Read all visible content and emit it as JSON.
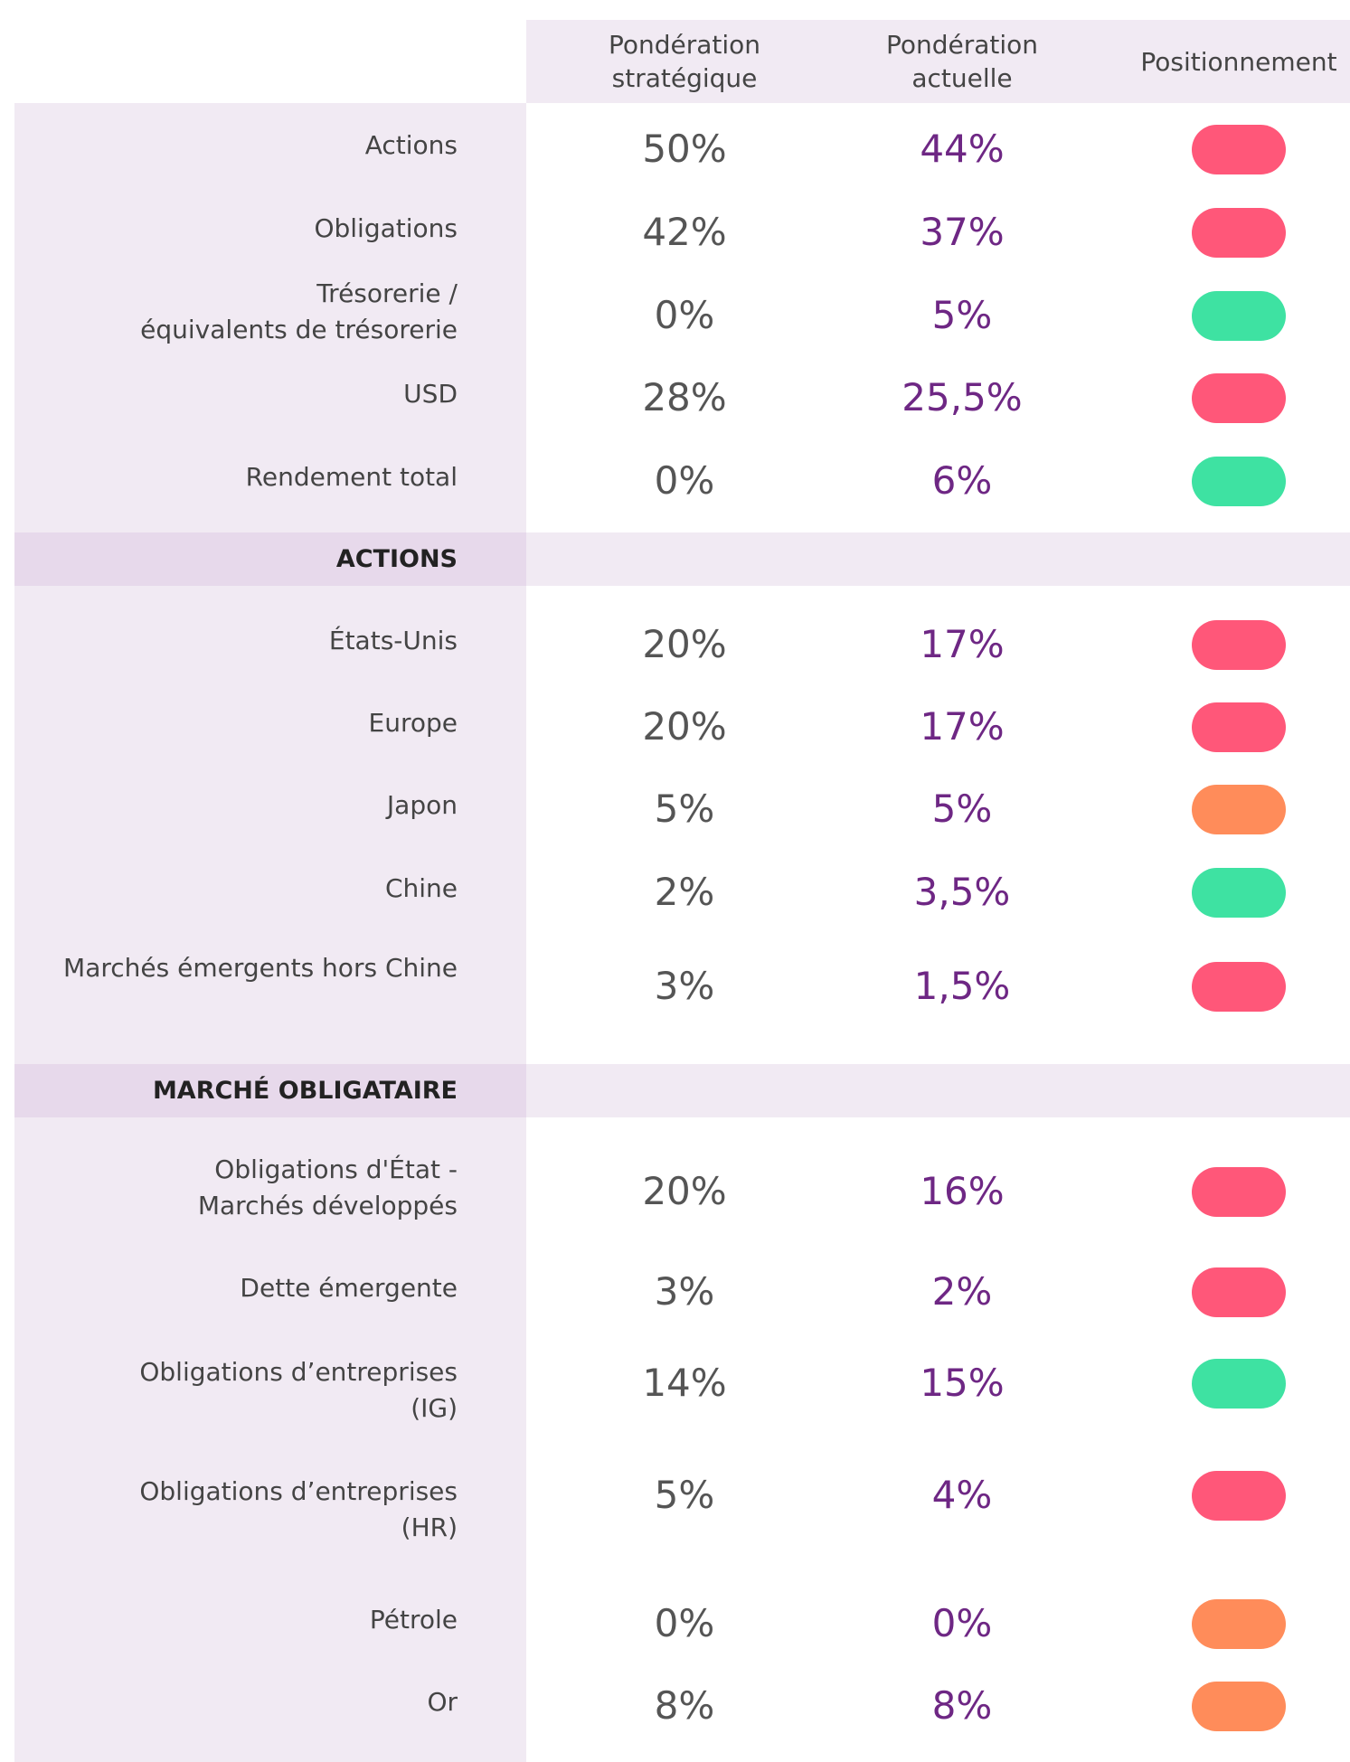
{
  "header": {
    "columns": [
      [
        "Pondération",
        "stratégique"
      ],
      [
        "Pondération",
        "actuelle"
      ],
      [
        "Positionnement"
      ]
    ]
  },
  "sections": [
    {
      "rows": [
        {
          "label": [
            "Actions"
          ],
          "strategic": "50%",
          "current": "44%",
          "color": "#ff5779"
        },
        {
          "label": [
            "Obligations"
          ],
          "strategic": "42%",
          "current": "37%",
          "color": "#ff5779"
        },
        {
          "label": [
            "Trésorerie /",
            "équivalents de trésorerie"
          ],
          "strategic": "0%",
          "current": "5%",
          "color": "#3ee2a2"
        },
        {
          "label": [
            "USD"
          ],
          "strategic": "28%",
          "current": "25,5%",
          "color": "#ff5779"
        },
        {
          "label": [
            "Rendement total"
          ],
          "strategic": "0%",
          "current": "6%",
          "color": "#3ee2a2"
        }
      ]
    },
    {
      "title": "ACTIONS",
      "rows": [
        {
          "label": [
            "États-Unis"
          ],
          "strategic": "20%",
          "current": "17%",
          "color": "#ff5779"
        },
        {
          "label": [
            "Europe"
          ],
          "strategic": "20%",
          "current": "17%",
          "color": "#ff5779"
        },
        {
          "label": [
            "Japon"
          ],
          "strategic": "5%",
          "current": "5%",
          "color": "#ff8c5a"
        },
        {
          "label": [
            "Chine"
          ],
          "strategic": "2%",
          "current": "3,5%",
          "color": "#3ee2a2"
        },
        {
          "label": [
            "Marchés émergents hors Chine"
          ],
          "strategic": "3%",
          "current": "1,5%",
          "color": "#ff5779"
        }
      ]
    },
    {
      "title": "MARCHÉ OBLIGATAIRE",
      "rows": [
        {
          "label": [
            "Obligations d'État  -",
            "Marchés développés"
          ],
          "strategic": "20%",
          "current": "16%",
          "color": "#ff5779"
        },
        {
          "label": [
            "Dette émergente"
          ],
          "strategic": "3%",
          "current": "2%",
          "color": "#ff5779"
        },
        {
          "label": [
            "Obligations d’entreprises",
            "(IG)"
          ],
          "strategic": "14%",
          "current": "15%",
          "color": "#3ee2a2"
        },
        {
          "label": [
            "Obligations d’entreprises",
            "(HR)"
          ],
          "strategic": "5%",
          "current": "4%",
          "color": "#ff5779"
        },
        {
          "label": [
            "Pétrole"
          ],
          "strategic": "0%",
          "current": "0%",
          "color": "#ff8c5a"
        },
        {
          "label": [
            "Or"
          ],
          "strategic": "8%",
          "current": "8%",
          "color": "#ff8c5a"
        }
      ]
    }
  ]
}
